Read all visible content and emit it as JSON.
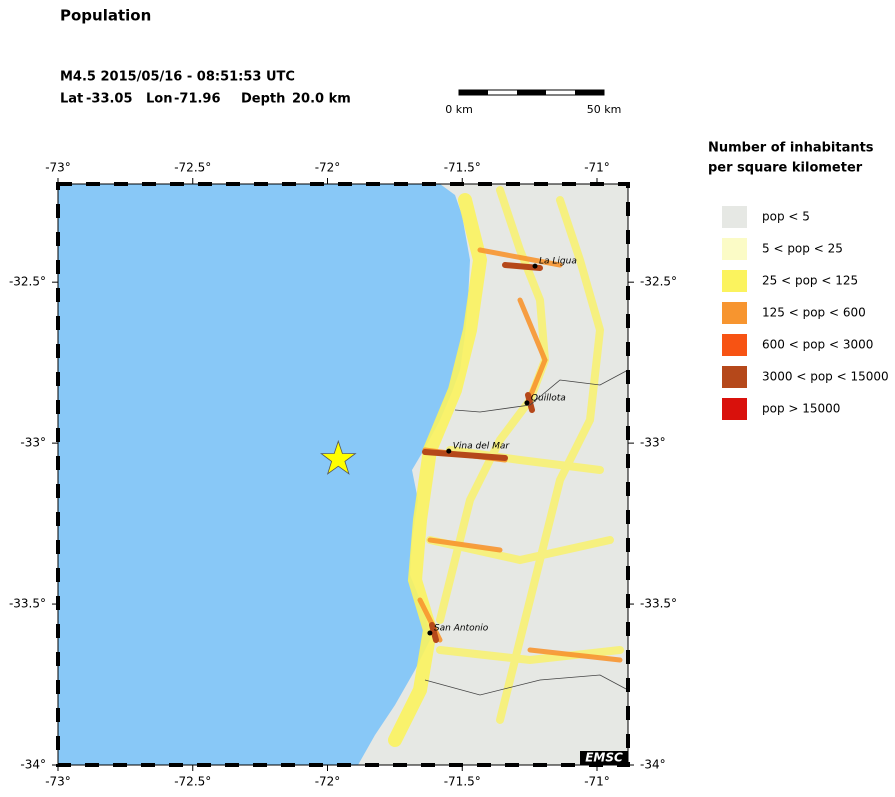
{
  "header": {
    "title": "Population",
    "event_line": "M4.5  2015/05/16 - 08:51:53 UTC",
    "lat_label": "Lat",
    "lat": -33.05,
    "lon_label": "Lon",
    "lon": -71.96,
    "depth_label": "Depth",
    "depth": "20.0 km"
  },
  "scale_bar": {
    "start": "0 km",
    "end": "50 km"
  },
  "map": {
    "xlim": [
      -73,
      -70.885
    ],
    "ylim": [
      -34,
      -32.195
    ],
    "xticks": [
      {
        "value": -73,
        "label": "-73°"
      },
      {
        "value": -72.5,
        "label": "-72.5°"
      },
      {
        "value": -72,
        "label": "-72°"
      },
      {
        "value": -71.5,
        "label": "-71.5°"
      },
      {
        "value": -71,
        "label": "-71°"
      }
    ],
    "yticks": [
      {
        "value": -32.5,
        "label": "-32.5°"
      },
      {
        "value": -33,
        "label": "-33°"
      },
      {
        "value": -33.5,
        "label": "-33.5°"
      },
      {
        "value": -34,
        "label": "-34°"
      }
    ],
    "cities": [
      {
        "name": "La Ligua",
        "lon": -71.23,
        "lat": -32.45
      },
      {
        "name": "Quillota",
        "lon": -71.26,
        "lat": -32.875
      },
      {
        "name": "Vina del Mar",
        "lon": -71.55,
        "lat": -33.025
      },
      {
        "name": "San Antonio",
        "lon": -71.62,
        "lat": -33.59
      }
    ],
    "credit": "EMSC"
  },
  "legend": {
    "title_lines": [
      "Number of inhabitants",
      "per square kilometer"
    ],
    "items": [
      {
        "label": "pop < 5",
        "color": "#e6e8e4"
      },
      {
        "label": "5 < pop < 25",
        "color": "#fbfbc6"
      },
      {
        "label": "25 < pop < 125",
        "color": "#fbf35e"
      },
      {
        "label": "125 < pop < 600",
        "color": "#f7952f"
      },
      {
        "label": "600 < pop < 3000",
        "color": "#f75313"
      },
      {
        "label": "3000 < pop < 15000",
        "color": "#b5481a"
      },
      {
        "label": "pop > 15000",
        "color": "#d9110c"
      }
    ]
  }
}
